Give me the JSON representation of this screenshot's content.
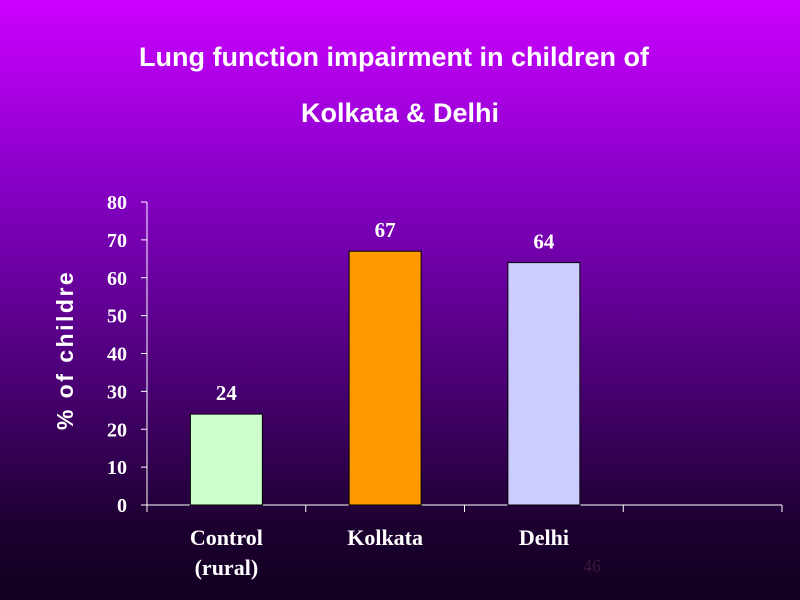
{
  "slide": {
    "title_line_1": "Lung function impairment in children of",
    "title_line_2": "Kolkata & Delhi",
    "page_number": "46"
  },
  "chart_data": {
    "type": "bar",
    "categories": [
      "Control (rural)",
      "Kolkata",
      "Delhi"
    ],
    "category_lines": [
      [
        "Control",
        "(rural)"
      ],
      [
        "Kolkata"
      ],
      [
        "Delhi"
      ]
    ],
    "values": [
      24,
      67,
      64
    ],
    "data_labels": [
      "24",
      "67",
      "64"
    ],
    "colors": [
      "#ccffcc",
      "#ff9900",
      "#ccccff"
    ],
    "ylabel": "% of childre",
    "xlabel": "",
    "ylim": [
      0,
      80
    ],
    "yticks": [
      0,
      10,
      20,
      30,
      40,
      50,
      60,
      70,
      80
    ],
    "grid": false,
    "legend": "none"
  }
}
